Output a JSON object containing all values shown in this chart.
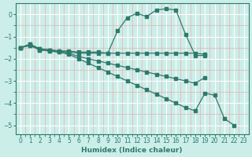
{
  "xlabel": "Humidex (Indice chaleur)",
  "ylabel": "",
  "bg_color": "#cceee8",
  "line_color": "#2d7a6e",
  "grid_major_color": "#ffffff",
  "grid_minor_color": "#e8b0b0",
  "xlim": [
    -0.5,
    23.5
  ],
  "ylim": [
    -5.4,
    0.5
  ],
  "xticks": [
    0,
    1,
    2,
    3,
    4,
    5,
    6,
    7,
    8,
    9,
    10,
    11,
    12,
    13,
    14,
    15,
    16,
    17,
    18,
    19,
    20,
    21,
    22,
    23
  ],
  "yticks": [
    0,
    -1,
    -2,
    -3,
    -4,
    -5
  ],
  "lines": [
    {
      "x": [
        0,
        1,
        2,
        3,
        4,
        5,
        6,
        7,
        8,
        9,
        10,
        11,
        12,
        13,
        14,
        15,
        16,
        17,
        18,
        19
      ],
      "y": [
        -1.5,
        -1.35,
        -1.55,
        -1.6,
        -1.65,
        -1.65,
        -1.7,
        -1.7,
        -1.7,
        -1.75,
        -0.75,
        -0.15,
        0.05,
        -0.1,
        0.2,
        0.25,
        0.2,
        -0.9,
        -1.85,
        -1.85
      ]
    },
    {
      "x": [
        0,
        1,
        2,
        3,
        4,
        5,
        6,
        7,
        8,
        9,
        10,
        11,
        12,
        13,
        14,
        15,
        16,
        17,
        18,
        19
      ],
      "y": [
        -1.5,
        -1.35,
        -1.55,
        -1.6,
        -1.65,
        -1.7,
        -1.75,
        -1.75,
        -1.75,
        -1.75,
        -1.75,
        -1.75,
        -1.75,
        -1.75,
        -1.75,
        -1.75,
        -1.75,
        -1.75,
        -1.75,
        -1.8
      ]
    },
    {
      "x": [
        0,
        1,
        2,
        3,
        4,
        5,
        6,
        7,
        8,
        9,
        10,
        11,
        12,
        13,
        14,
        15,
        16,
        17,
        18,
        19
      ],
      "y": [
        -1.5,
        -1.4,
        -1.6,
        -1.65,
        -1.7,
        -1.75,
        -1.9,
        -2.0,
        -2.1,
        -2.2,
        -2.3,
        -2.4,
        -2.5,
        -2.6,
        -2.7,
        -2.8,
        -2.9,
        -3.0,
        -3.1,
        -2.85
      ]
    },
    {
      "x": [
        0,
        1,
        2,
        3,
        4,
        5,
        6,
        7,
        8,
        9,
        10,
        11,
        12,
        13,
        14,
        15,
        16,
        17,
        18,
        19,
        20,
        21,
        22
      ],
      "y": [
        -1.5,
        -1.4,
        -1.6,
        -1.65,
        -1.7,
        -1.8,
        -2.0,
        -2.2,
        -2.4,
        -2.6,
        -2.8,
        -3.0,
        -3.2,
        -3.4,
        -3.6,
        -3.8,
        -4.0,
        -4.2,
        -4.35,
        -3.55,
        -3.65,
        -4.7,
        -5.0
      ]
    }
  ]
}
